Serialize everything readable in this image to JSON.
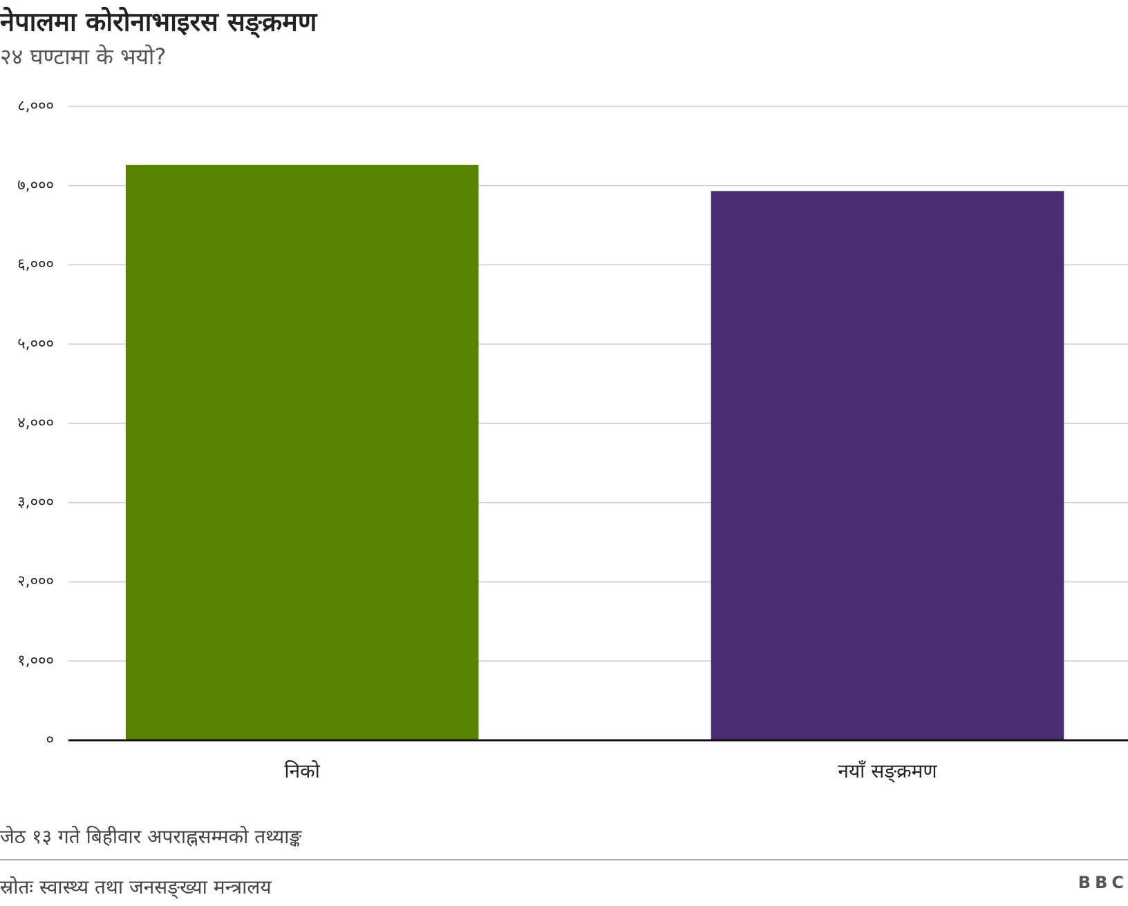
{
  "chart_data": {
    "type": "bar",
    "title": "नेपालमा कोरोनाभाइरस सङ्क्रमण",
    "subtitle": "२४ घण्टामा के भयो?",
    "categories": [
      "निको",
      "नयाँ सङ्क्रमण"
    ],
    "values": [
      7260,
      6930
    ],
    "colors": [
      "#588300",
      "#4b2c73"
    ],
    "ylim": [
      0,
      8000
    ],
    "yticks": [
      {
        "value": 0,
        "label": "०"
      },
      {
        "value": 1000,
        "label": "१,०००"
      },
      {
        "value": 2000,
        "label": "२,०००"
      },
      {
        "value": 3000,
        "label": "३,०००"
      },
      {
        "value": 4000,
        "label": "४,०००"
      },
      {
        "value": 5000,
        "label": "५,०००"
      },
      {
        "value": 6000,
        "label": "६,०००"
      },
      {
        "value": 7000,
        "label": "७,०००"
      },
      {
        "value": 8000,
        "label": "८,०००"
      }
    ],
    "grid": true,
    "note": "जेठ १३ गते बिहीवार अपराह्नसम्मको तथ्याङ्क",
    "source": "स्रोतः स्वास्थ्य तथा जनसङ्ख्या मन्त्रालय",
    "logo": "BBC"
  }
}
